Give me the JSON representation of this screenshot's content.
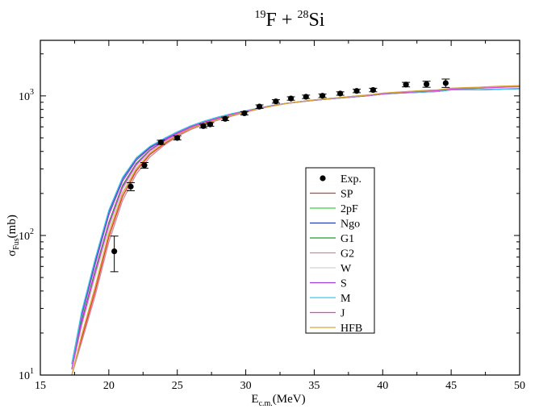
{
  "chart_data": {
    "type": "line",
    "title": {
      "mass1": "19",
      "elem1": "F",
      "plus": " + ",
      "mass2": "28",
      "elem2": "Si"
    },
    "xlabel": {
      "main": "E",
      "sub": "c.m.",
      "unit": "(MeV)"
    },
    "ylabel": {
      "main": "σ",
      "sub": "Fus",
      "unit": "(mb)"
    },
    "xlim": [
      15,
      50
    ],
    "ylim": [
      10,
      2500
    ],
    "yscale": "log",
    "grid": false,
    "legend_position": "center-right",
    "x_ticks": [
      "15",
      "20",
      "25",
      "30",
      "35",
      "40",
      "45",
      "50"
    ],
    "y_ticks": [
      {
        "value": 10,
        "base": "10",
        "exp": "1"
      },
      {
        "value": 100,
        "base": "10",
        "exp": "2"
      },
      {
        "value": 1000,
        "base": "10",
        "exp": "3"
      }
    ],
    "experiment": {
      "name": "Exp.",
      "x": [
        20.4,
        21.6,
        22.6,
        23.8,
        25.0,
        26.9,
        27.4,
        28.5,
        29.9,
        31.0,
        32.2,
        33.3,
        34.4,
        35.6,
        36.9,
        38.1,
        39.3,
        41.7,
        43.2,
        44.6
      ],
      "y": [
        77,
        224,
        318,
        465,
        500,
        608,
        625,
        685,
        751,
        838,
        913,
        958,
        985,
        1002,
        1040,
        1085,
        1102,
        1205,
        1213,
        1235
      ],
      "err": [
        22,
        15,
        15,
        16,
        16,
        19,
        19,
        20,
        21,
        24,
        26,
        27,
        28,
        28,
        29,
        31,
        32,
        45,
        60,
        85
      ]
    },
    "series": [
      {
        "name": "SP",
        "color": "#e8322a",
        "x": [
          17.3,
          18.0,
          19.0,
          20.0,
          21.0,
          22.0,
          23.0,
          24.0,
          25.0,
          26.0,
          27.0,
          28.0,
          29.0,
          30.0,
          31.0,
          32.0,
          33.0,
          34.0,
          35.0,
          36.0,
          37.0,
          38.0,
          39.0,
          40.0,
          41.0,
          42.0,
          43.0,
          44.0,
          45.0,
          46.0,
          47.0,
          48.0,
          49.0,
          50.0
        ],
        "y": [
          10,
          18,
          40,
          98,
          190,
          290,
          380,
          450,
          520,
          580,
          630,
          675,
          720,
          765,
          810,
          850,
          885,
          910,
          935,
          955,
          975,
          995,
          1015,
          1045,
          1060,
          1075,
          1090,
          1100,
          1130,
          1140,
          1145,
          1160,
          1170,
          1180
        ]
      },
      {
        "name": "2pF",
        "color": "#3bd13b",
        "x": [
          17.3,
          18.0,
          19.0,
          20.0,
          21.0,
          22.0,
          23.0,
          24.0,
          25.0,
          26.0,
          27.0,
          28.0,
          29.0,
          30.0,
          31.0,
          32.0,
          33.0,
          34.0,
          35.0,
          36.0,
          37.0,
          38.0,
          39.0,
          40.0,
          41.0,
          42.0,
          43.0,
          44.0,
          45.0,
          46.0,
          47.0,
          48.0,
          49.0,
          50.0
        ],
        "y": [
          11,
          23,
          53,
          118,
          220,
          320,
          405,
          470,
          535,
          595,
          645,
          690,
          735,
          775,
          815,
          852,
          885,
          910,
          935,
          955,
          975,
          993,
          1012,
          1040,
          1058,
          1072,
          1088,
          1098,
          1128,
          1138,
          1145,
          1158,
          1168,
          1175
        ]
      },
      {
        "name": "Ngo",
        "color": "#2a3fa8",
        "x": [
          17.3,
          18.0,
          19.0,
          20.0,
          21.0,
          22.0,
          23.0,
          24.0,
          25.0,
          26.0,
          27.0,
          28.0,
          29.0,
          30.0,
          31.0,
          32.0,
          33.0,
          34.0,
          35.0,
          36.0,
          37.0,
          38.0,
          39.0,
          40.0,
          41.0,
          42.0,
          43.0,
          44.0,
          45.0,
          46.0,
          47.0,
          48.0,
          49.0,
          50.0
        ],
        "y": [
          12,
          27,
          66,
          148,
          255,
          355,
          430,
          490,
          550,
          610,
          660,
          705,
          745,
          780,
          818,
          855,
          885,
          908,
          930,
          950,
          968,
          985,
          1005,
          1030,
          1045,
          1055,
          1065,
          1075,
          1105,
          1110,
          1105,
          1110,
          1120,
          1125
        ]
      },
      {
        "name": "G1",
        "color": "#1e9a2e",
        "x": [
          17.3,
          18.0,
          19.0,
          20.0,
          21.0,
          22.0,
          23.0,
          24.0,
          25.0,
          26.0,
          27.0,
          28.0,
          29.0,
          30.0,
          31.0,
          32.0,
          33.0,
          34.0,
          35.0,
          36.0,
          37.0,
          38.0,
          39.0,
          40.0,
          41.0,
          42.0,
          43.0,
          44.0,
          45.0,
          46.0,
          47.0,
          48.0,
          49.0,
          50.0
        ],
        "y": [
          11,
          24,
          56,
          124,
          228,
          328,
          410,
          475,
          540,
          598,
          648,
          693,
          738,
          778,
          818,
          853,
          886,
          910,
          934,
          954,
          973,
          991,
          1010,
          1038,
          1055,
          1068,
          1083,
          1093,
          1123,
          1133,
          1138,
          1150,
          1160,
          1168
        ]
      },
      {
        "name": "G2",
        "color": "#c98d99",
        "x": [
          17.3,
          18.0,
          19.0,
          20.0,
          21.0,
          22.0,
          23.0,
          24.0,
          25.0,
          26.0,
          27.0,
          28.0,
          29.0,
          30.0,
          31.0,
          32.0,
          33.0,
          34.0,
          35.0,
          36.0,
          37.0,
          38.0,
          39.0,
          40.0,
          41.0,
          42.0,
          43.0,
          44.0,
          45.0,
          46.0,
          47.0,
          48.0,
          49.0,
          50.0
        ],
        "y": [
          10,
          17,
          37,
          90,
          178,
          275,
          365,
          440,
          512,
          575,
          625,
          672,
          717,
          762,
          808,
          848,
          883,
          908,
          933,
          953,
          973,
          993,
          1013,
          1043,
          1058,
          1073,
          1088,
          1098,
          1128,
          1138,
          1143,
          1158,
          1168,
          1178
        ]
      },
      {
        "name": "W",
        "color": "#d2d2d2",
        "x": [
          17.3,
          18.0,
          19.0,
          20.0,
          21.0,
          22.0,
          23.0,
          24.0,
          25.0,
          26.0,
          27.0,
          28.0,
          29.0,
          30.0,
          31.0,
          32.0,
          33.0,
          34.0,
          35.0,
          36.0,
          37.0,
          38.0,
          39.0,
          40.0,
          41.0,
          42.0,
          43.0,
          44.0,
          45.0,
          46.0,
          47.0,
          48.0,
          49.0,
          50.0
        ],
        "y": [
          11,
          22,
          50,
          112,
          212,
          312,
          398,
          465,
          530,
          590,
          640,
          686,
          731,
          772,
          813,
          850,
          884,
          909,
          934,
          955,
          975,
          994,
          1014,
          1042,
          1060,
          1074,
          1090,
          1100,
          1130,
          1140,
          1148,
          1162,
          1172,
          1180
        ]
      },
      {
        "name": "S",
        "color": "#9b3fe0",
        "x": [
          17.3,
          18.0,
          19.0,
          20.0,
          21.0,
          22.0,
          23.0,
          24.0,
          25.0,
          26.0,
          27.0,
          28.0,
          29.0,
          30.0,
          31.0,
          32.0,
          33.0,
          34.0,
          35.0,
          36.0,
          37.0,
          38.0,
          39.0,
          40.0,
          41.0,
          42.0,
          43.0,
          44.0,
          45.0,
          46.0,
          47.0,
          48.0,
          49.0,
          50.0
        ],
        "y": [
          12,
          26,
          62,
          140,
          245,
          345,
          422,
          484,
          545,
          605,
          655,
          700,
          742,
          778,
          816,
          853,
          884,
          907,
          930,
          950,
          968,
          985,
          1004,
          1030,
          1046,
          1056,
          1066,
          1076,
          1106,
          1112,
          1108,
          1113,
          1122,
          1128
        ]
      },
      {
        "name": "M",
        "color": "#40c8e6",
        "x": [
          17.3,
          18.0,
          19.0,
          20.0,
          21.0,
          22.0,
          23.0,
          24.0,
          25.0,
          26.0,
          27.0,
          28.0,
          29.0,
          30.0,
          31.0,
          32.0,
          33.0,
          34.0,
          35.0,
          36.0,
          37.0,
          38.0,
          39.0,
          40.0,
          41.0,
          42.0,
          43.0,
          44.0,
          45.0,
          46.0,
          47.0,
          48.0,
          49.0,
          50.0
        ],
        "y": [
          12,
          28,
          68,
          152,
          260,
          360,
          435,
          494,
          553,
          612,
          662,
          706,
          746,
          781,
          819,
          855,
          885,
          908,
          931,
          951,
          969,
          986,
          1006,
          1032,
          1047,
          1057,
          1067,
          1077,
          1107,
          1112,
          1107,
          1112,
          1122,
          1127
        ]
      },
      {
        "name": "J",
        "color": "#e23be0",
        "x": [
          17.3,
          18.0,
          19.0,
          20.0,
          21.0,
          22.0,
          23.0,
          24.0,
          25.0,
          26.0,
          27.0,
          28.0,
          29.0,
          30.0,
          31.0,
          32.0,
          33.0,
          34.0,
          35.0,
          36.0,
          37.0,
          38.0,
          39.0,
          40.0,
          41.0,
          42.0,
          43.0,
          44.0,
          45.0,
          46.0,
          47.0,
          48.0,
          49.0,
          50.0
        ],
        "y": [
          11,
          23,
          54,
          120,
          222,
          322,
          406,
          472,
          537,
          596,
          646,
          691,
          736,
          776,
          816,
          852,
          885,
          909,
          933,
          953,
          972,
          990,
          1009,
          1036,
          1053,
          1066,
          1080,
          1090,
          1120,
          1130,
          1135,
          1146,
          1156,
          1164
        ]
      },
      {
        "name": "HFB",
        "color": "#d6a736",
        "x": [
          17.3,
          18.0,
          19.0,
          20.0,
          21.0,
          22.0,
          23.0,
          24.0,
          25.0,
          26.0,
          27.0,
          28.0,
          29.0,
          30.0,
          31.0,
          32.0,
          33.0,
          34.0,
          35.0,
          36.0,
          37.0,
          38.0,
          39.0,
          40.0,
          41.0,
          42.0,
          43.0,
          44.0,
          45.0,
          46.0,
          47.0,
          48.0,
          49.0,
          50.0
        ],
        "y": [
          10,
          19,
          43,
          104,
          200,
          300,
          388,
          457,
          525,
          586,
          636,
          681,
          726,
          768,
          811,
          849,
          884,
          909,
          934,
          955,
          976,
          996,
          1016,
          1046,
          1062,
          1077,
          1093,
          1104,
          1135,
          1145,
          1152,
          1166,
          1176,
          1185
        ]
      }
    ]
  }
}
